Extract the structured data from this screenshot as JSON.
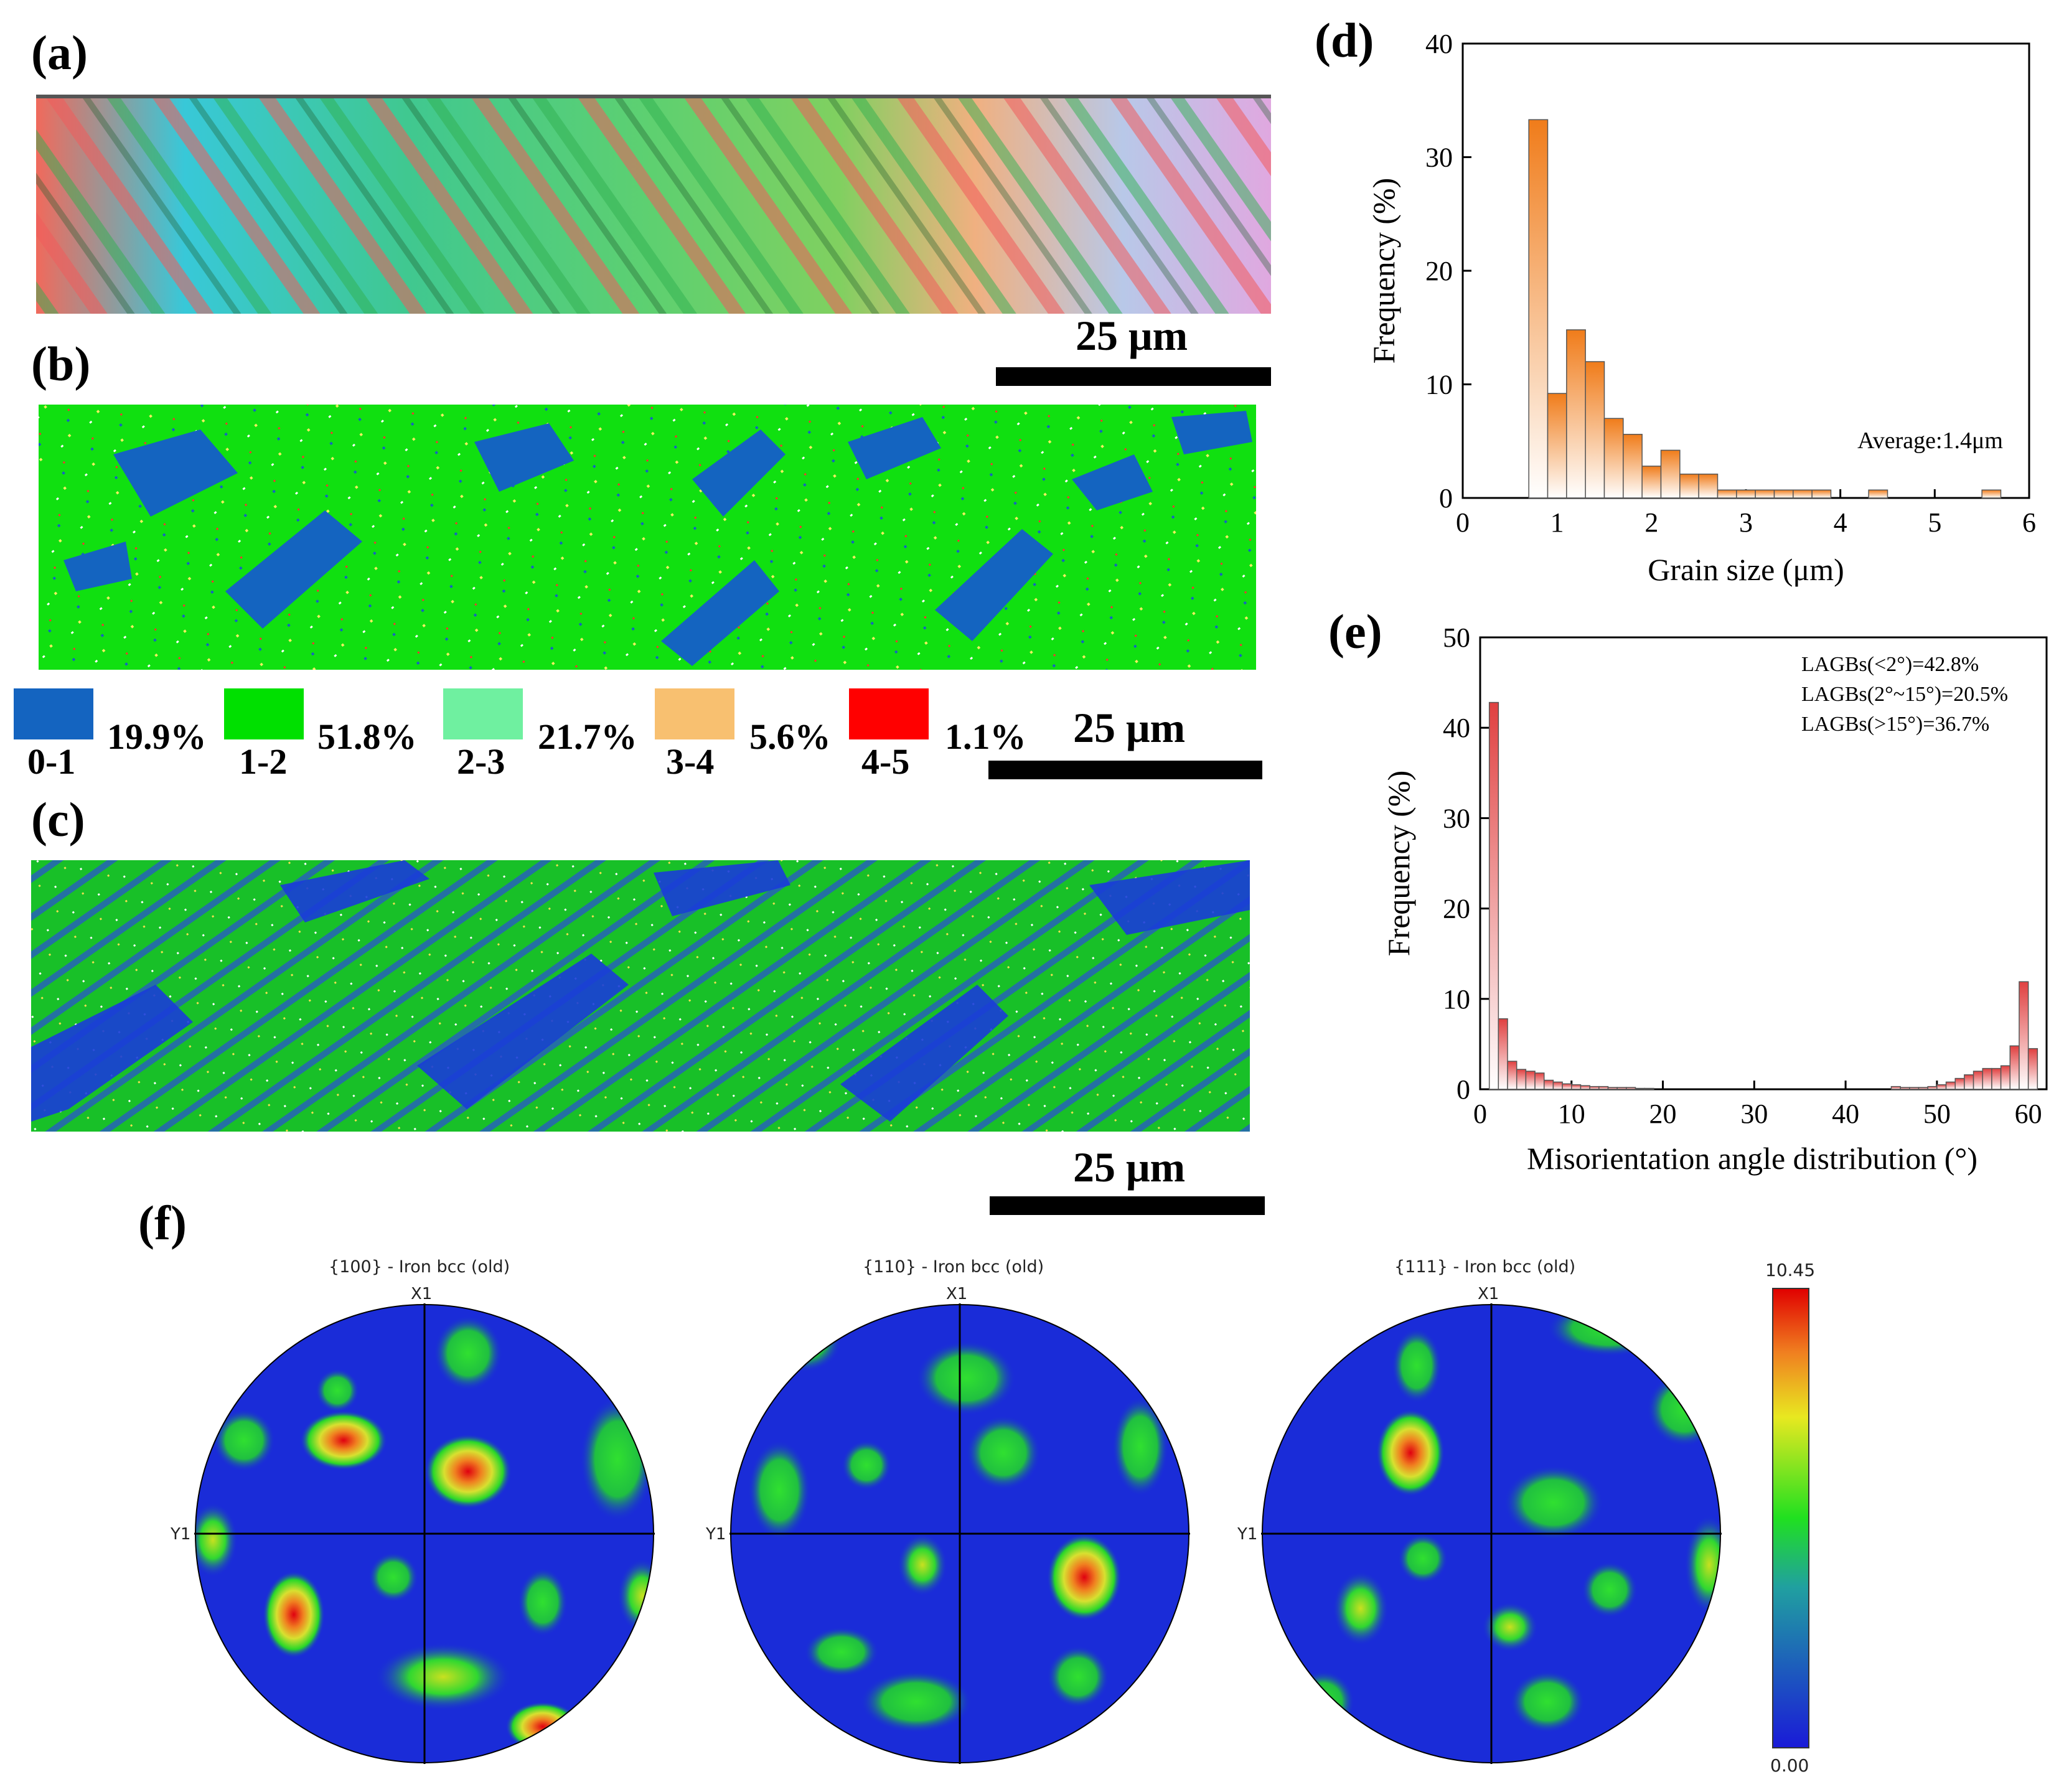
{
  "panels": {
    "a": {
      "letter": "(a)",
      "scale": "25 μm"
    },
    "b": {
      "letter": "(b)",
      "scale": "25 μm"
    },
    "c": {
      "letter": "(c)",
      "scale": "25 μm"
    },
    "d": {
      "letter": "(d)"
    },
    "e": {
      "letter": "(e)"
    },
    "f": {
      "letter": "(f)"
    }
  },
  "kam_legend": [
    {
      "range": "0-1",
      "percent": "19.9%",
      "color": "#1464c0"
    },
    {
      "range": "1-2",
      "percent": "51.8%",
      "color": "#00e000"
    },
    {
      "range": "2-3",
      "percent": "21.7%",
      "color": "#6ff0a0"
    },
    {
      "range": "3-4",
      "percent": "5.6%",
      "color": "#f8c070"
    },
    {
      "range": "4-5",
      "percent": "1.1%",
      "color": "#ff0000"
    }
  ],
  "pole_figures": [
    {
      "title": "{100} - Iron bcc (old)",
      "x_label": "X1",
      "y_label": "Y1"
    },
    {
      "title": "{110} - Iron bcc (old)",
      "x_label": "X1",
      "y_label": "Y1"
    },
    {
      "title": "{111} - Iron bcc (old)",
      "x_label": "X1",
      "y_label": "Y1"
    }
  ],
  "colorbar": {
    "max": "10.45",
    "min": "0.00"
  },
  "colors": {
    "accent_orange": "#f07c1a",
    "accent_red": "#e04040",
    "map_blue": "#1a2cd8"
  },
  "chart_data": [
    {
      "id": "d",
      "type": "bar",
      "xlabel": "Grain size (μm)",
      "ylabel": "Frequency (%)",
      "xlim": [
        0,
        6
      ],
      "ylim": [
        0,
        40
      ],
      "xticks": [
        "0",
        "1",
        "2",
        "3",
        "4",
        "5",
        "6"
      ],
      "yticks": [
        "0",
        "10",
        "20",
        "30",
        "40"
      ],
      "annotation": "Average:1.4μm",
      "bin_width": 0.2,
      "bins": [
        {
          "x": 0.8,
          "y": 33.3
        },
        {
          "x": 1.0,
          "y": 9.2
        },
        {
          "x": 1.2,
          "y": 14.8
        },
        {
          "x": 1.4,
          "y": 12.0
        },
        {
          "x": 1.6,
          "y": 7.0
        },
        {
          "x": 1.8,
          "y": 5.6
        },
        {
          "x": 2.0,
          "y": 2.8
        },
        {
          "x": 2.2,
          "y": 4.2
        },
        {
          "x": 2.4,
          "y": 2.1
        },
        {
          "x": 2.6,
          "y": 2.1
        },
        {
          "x": 2.8,
          "y": 0.7
        },
        {
          "x": 3.0,
          "y": 0.7
        },
        {
          "x": 3.2,
          "y": 0.7
        },
        {
          "x": 3.4,
          "y": 0.7
        },
        {
          "x": 3.6,
          "y": 0.7
        },
        {
          "x": 3.8,
          "y": 0.7
        },
        {
          "x": 4.4,
          "y": 0.7
        },
        {
          "x": 5.6,
          "y": 0.7
        }
      ]
    },
    {
      "id": "e",
      "type": "bar",
      "xlabel": "Misorientation angle distribution (°)",
      "ylabel": "Frequency (%)",
      "xlim": [
        0,
        62
      ],
      "ylim": [
        0,
        50
      ],
      "xticks": [
        "0",
        "10",
        "20",
        "30",
        "40",
        "50",
        "60"
      ],
      "yticks": [
        "0",
        "10",
        "20",
        "30",
        "40",
        "50"
      ],
      "annotations": [
        "LAGBs(<2°)=42.8%",
        "LAGBs(2°~15°)=20.5%",
        "LAGBs(>15°)=36.7%"
      ],
      "bin_width": 1,
      "bins": [
        {
          "x": 1.5,
          "y": 42.8
        },
        {
          "x": 2.5,
          "y": 7.8
        },
        {
          "x": 3.5,
          "y": 3.1
        },
        {
          "x": 4.5,
          "y": 2.2
        },
        {
          "x": 5.5,
          "y": 2.0
        },
        {
          "x": 6.5,
          "y": 1.8
        },
        {
          "x": 7.5,
          "y": 1.0
        },
        {
          "x": 8.5,
          "y": 0.8
        },
        {
          "x": 9.5,
          "y": 0.6
        },
        {
          "x": 10.5,
          "y": 0.5
        },
        {
          "x": 11.5,
          "y": 0.4
        },
        {
          "x": 12.5,
          "y": 0.3
        },
        {
          "x": 13.5,
          "y": 0.3
        },
        {
          "x": 14.5,
          "y": 0.2
        },
        {
          "x": 15.5,
          "y": 0.2
        },
        {
          "x": 16.5,
          "y": 0.2
        },
        {
          "x": 17.5,
          "y": 0.1
        },
        {
          "x": 18.5,
          "y": 0.1
        },
        {
          "x": 45.5,
          "y": 0.3
        },
        {
          "x": 46.5,
          "y": 0.2
        },
        {
          "x": 47.5,
          "y": 0.2
        },
        {
          "x": 48.5,
          "y": 0.2
        },
        {
          "x": 49.5,
          "y": 0.3
        },
        {
          "x": 50.5,
          "y": 0.5
        },
        {
          "x": 51.5,
          "y": 0.8
        },
        {
          "x": 52.5,
          "y": 1.2
        },
        {
          "x": 53.5,
          "y": 1.6
        },
        {
          "x": 54.5,
          "y": 2.0
        },
        {
          "x": 55.5,
          "y": 2.3
        },
        {
          "x": 56.5,
          "y": 2.3
        },
        {
          "x": 57.5,
          "y": 2.6
        },
        {
          "x": 58.5,
          "y": 4.8
        },
        {
          "x": 59.5,
          "y": 11.9
        },
        {
          "x": 60.5,
          "y": 4.5
        }
      ]
    }
  ]
}
